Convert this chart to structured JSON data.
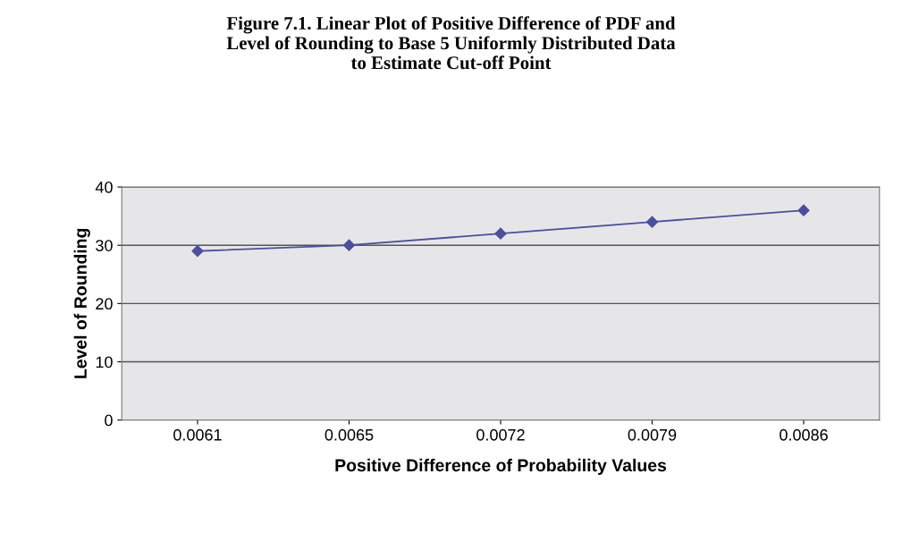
{
  "chart_data": {
    "type": "line",
    "title": "Figure 7.1. Linear Plot of Positive Difference of PDF and\nLevel of Rounding to Base 5 Uniformly Distributed Data\nto Estimate Cut-off Point",
    "xlabel": "Positive Difference of Probability Values",
    "ylabel": "Level of Rounding",
    "categories": [
      "0.0061",
      "0.0065",
      "0.0072",
      "0.0079",
      "0.0086"
    ],
    "series": [
      {
        "color": "#4a4fa0",
        "values": [
          29,
          30,
          32,
          34,
          36
        ]
      }
    ],
    "ylim": [
      0,
      40
    ],
    "yticks": [
      0,
      10,
      20,
      30,
      40
    ],
    "grid": "y",
    "marker": "diamond",
    "line_style": "solid"
  }
}
